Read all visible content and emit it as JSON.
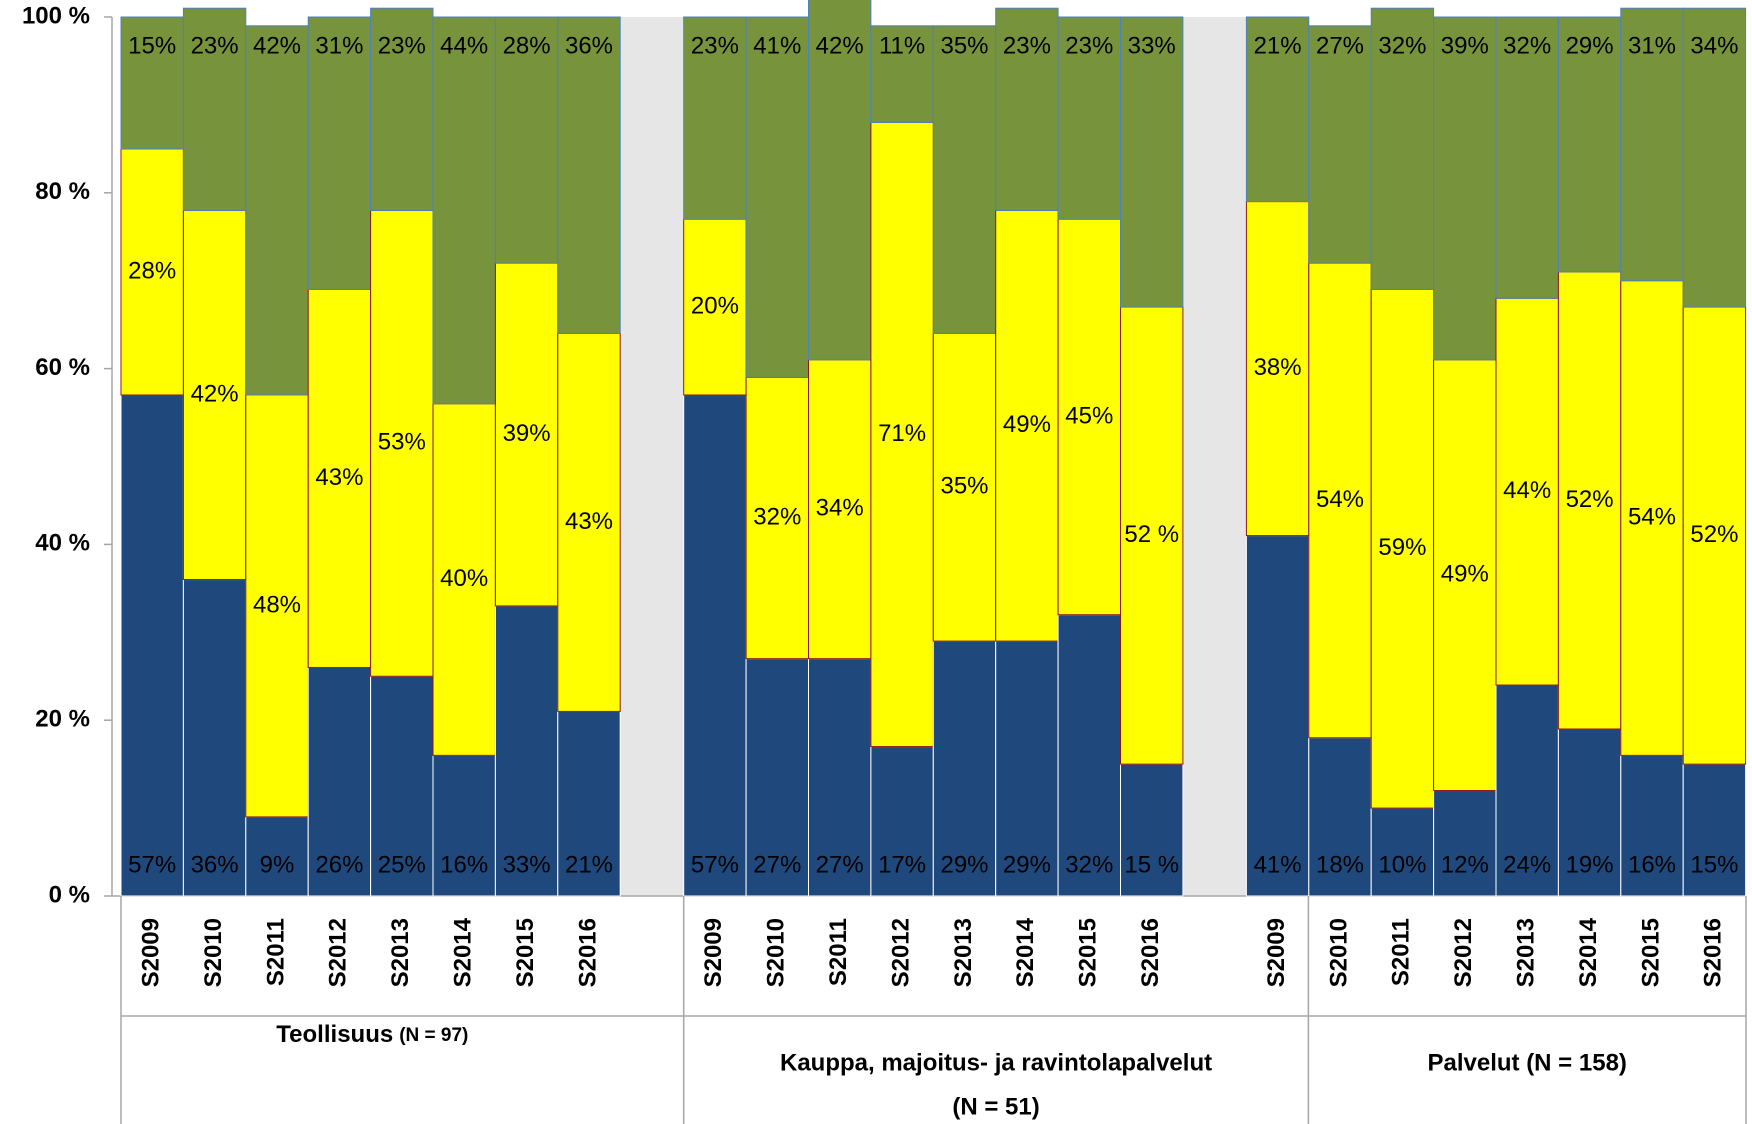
{
  "chart_data": {
    "type": "bar",
    "stacked": true,
    "ylim": [
      0,
      100
    ],
    "yticks": [
      {
        "value": 0,
        "label": "0 %"
      },
      {
        "value": 20,
        "label": "20 %"
      },
      {
        "value": 40,
        "label": "40 %"
      },
      {
        "value": 60,
        "label": "60 %"
      },
      {
        "value": 80,
        "label": "80 %"
      },
      {
        "value": 100,
        "label": "100 %"
      }
    ],
    "groups": [
      {
        "name": "Teollisuus",
        "note": "(N = 97)",
        "categories": [
          "S2009",
          "S2010",
          "S2011",
          "S2012",
          "S2013",
          "S2014",
          "S2015",
          "S2016"
        ],
        "series": [
          {
            "color": "#1f497d",
            "values": [
              57,
              36,
              9,
              26,
              25,
              16,
              33,
              21
            ],
            "value_labels": [
              "57%",
              "36%",
              "9%",
              "26%",
              "25%",
              "16%",
              "33%",
              "21%"
            ]
          },
          {
            "color": "#ffff00",
            "values": [
              28,
              42,
              48,
              43,
              53,
              40,
              39,
              43
            ],
            "value_labels": [
              "28%",
              "42%",
              "48%",
              "43%",
              "53%",
              "40%",
              "39%",
              "43%"
            ]
          },
          {
            "color": "#77933c",
            "values": [
              15,
              23,
              42,
              31,
              23,
              44,
              28,
              36
            ],
            "value_labels": [
              "15%",
              "23%",
              "42%",
              "31%",
              "23%",
              "44%",
              "28%",
              "36%"
            ]
          }
        ]
      },
      {
        "name": "Kauppa, majoitus- ja ravintolapalvelut",
        "note": "(N = 51)",
        "categories": [
          "S2009",
          "S2010",
          "S2011",
          "S2012",
          "S2013",
          "S2014",
          "S2015",
          "S2016"
        ],
        "series": [
          {
            "color": "#1f497d",
            "values": [
              57,
              27,
              27,
              17,
              29,
              29,
              32,
              15
            ],
            "value_labels": [
              "57%",
              "27%",
              "27%",
              "17%",
              "29%",
              "29%",
              "32%",
              "15 %"
            ]
          },
          {
            "color": "#ffff00",
            "values": [
              20,
              32,
              34,
              71,
              35,
              49,
              45,
              52
            ],
            "value_labels": [
              "20%",
              "32%",
              "34%",
              "71%",
              "35%",
              "49%",
              "45%",
              "52 %"
            ]
          },
          {
            "color": "#77933c",
            "values": [
              23,
              41,
              42,
              11,
              35,
              23,
              23,
              33
            ],
            "value_labels": [
              "23%",
              "41%",
              "42%",
              "11%",
              "35%",
              "23%",
              "23%",
              "33%"
            ]
          }
        ]
      },
      {
        "name": "Palvelut (N = 158)",
        "categories": [
          "S2009",
          "S2010",
          "S2011",
          "S2012",
          "S2013",
          "S2014",
          "S2015",
          "S2016"
        ],
        "series": [
          {
            "color": "#1f497d",
            "values": [
              41,
              18,
              10,
              12,
              24,
              19,
              16,
              15
            ],
            "value_labels": [
              "41%",
              "18%",
              "10%",
              "12%",
              "24%",
              "19%",
              "16%",
              "15%"
            ]
          },
          {
            "color": "#ffff00",
            "values": [
              38,
              54,
              59,
              49,
              44,
              52,
              54,
              52
            ],
            "value_labels": [
              "38%",
              "54%",
              "59%",
              "49%",
              "44%",
              "52%",
              "54%",
              "52%"
            ]
          },
          {
            "color": "#77933c",
            "values": [
              21,
              27,
              32,
              39,
              32,
              29,
              31,
              34
            ],
            "value_labels": [
              "21%",
              "27%",
              "32%",
              "39%",
              "32%",
              "29%",
              "31%",
              "34%"
            ]
          }
        ]
      }
    ]
  }
}
